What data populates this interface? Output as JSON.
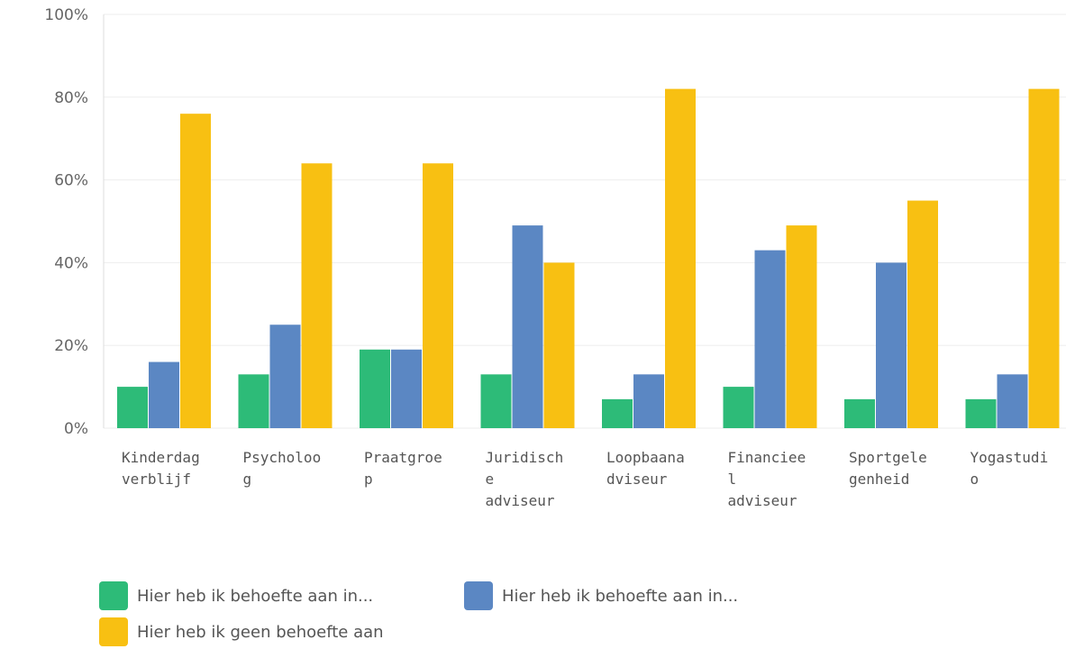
{
  "chart_data": {
    "type": "bar",
    "categories": [
      "Kinderdagverblijf",
      "Psycholoog",
      "Praatgroep",
      "Juridische adviseur",
      "Loopbaanadviseur",
      "Financieel adviseur",
      "Sportgelegenheid",
      "Yogastudio"
    ],
    "series": [
      {
        "name": "Hier heb ik behoefte aan in...",
        "color": "#2dbb78",
        "values": [
          10,
          13,
          19,
          13,
          7,
          10,
          7,
          7
        ]
      },
      {
        "name": "Hier heb ik behoefte aan in...",
        "color": "#5b87c3",
        "values": [
          16,
          25,
          19,
          49,
          13,
          43,
          40,
          13
        ]
      },
      {
        "name": "Hier heb ik geen behoefte aan",
        "color": "#f8c012",
        "values": [
          76,
          64,
          64,
          40,
          82,
          49,
          55,
          82
        ]
      }
    ],
    "ylim": [
      0,
      100
    ],
    "yticks": [
      {
        "value": 0,
        "label": "0%"
      },
      {
        "value": 20,
        "label": "20%"
      },
      {
        "value": 40,
        "label": "40%"
      },
      {
        "value": 60,
        "label": "60%"
      },
      {
        "value": 80,
        "label": "80%"
      },
      {
        "value": 100,
        "label": "100%"
      }
    ],
    "grid": true
  }
}
